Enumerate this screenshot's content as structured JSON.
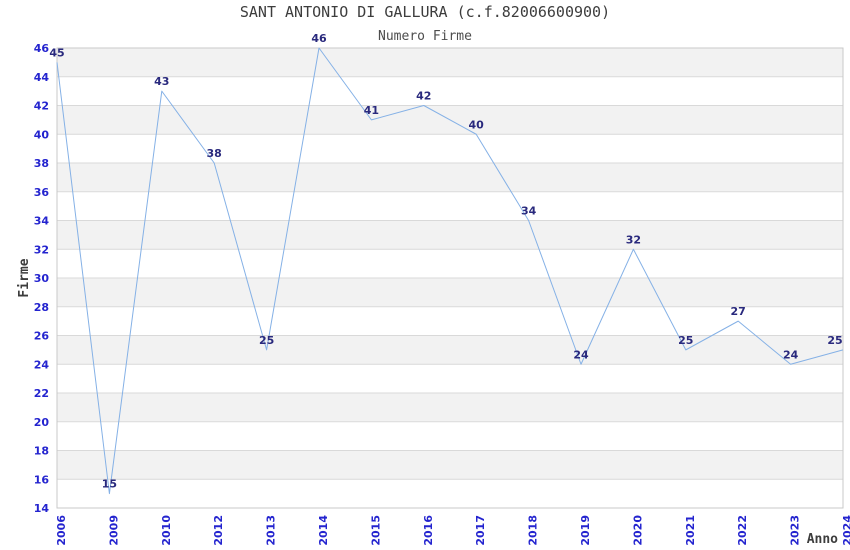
{
  "chart_data": {
    "type": "line",
    "title": "SANT ANTONIO DI GALLURA (c.f.82006600900)",
    "subtitle": "Numero Firme",
    "xlabel": "Anno",
    "ylabel": "Firme",
    "categories": [
      "2006",
      "2009",
      "2010",
      "2012",
      "2013",
      "2014",
      "2015",
      "2016",
      "2017",
      "2018",
      "2019",
      "2020",
      "2021",
      "2022",
      "2023",
      "2024"
    ],
    "values": [
      45,
      15,
      43,
      38,
      25,
      46,
      41,
      42,
      40,
      34,
      24,
      32,
      25,
      27,
      24,
      25
    ],
    "ylim": [
      14,
      46
    ],
    "ytick_step": 2,
    "xtick_rotation_deg": -90,
    "grid": "horizontal-bands",
    "legend": "none",
    "colors": {
      "line": "#85b1e6",
      "band_gray": "#f2f2f2",
      "band_white": "#ffffff",
      "gridline": "#d9d9d9",
      "plot_border": "#c9c9c9",
      "tick_label": "#2424cf",
      "data_label": "#29297d",
      "title": "#3d3d3d",
      "subtitle": "#4d4d4d",
      "axis_label": "#3d3d3d",
      "background": "#ffffff"
    }
  }
}
